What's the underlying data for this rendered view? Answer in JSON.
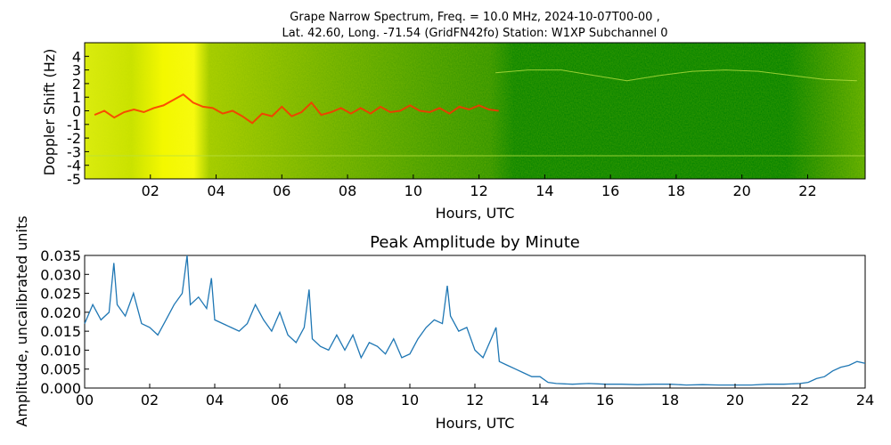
{
  "header": {
    "title_line1": "Grape Narrow Spectrum, Freq. = 10.0 MHz, 2024-10-07T00-00 ,",
    "title_line2": "Lat.  42.60, Long. -71.54 (GridFN42fo) Station: W1XP Subchannel 0"
  },
  "colors": {
    "spectrogram_background": "#008000",
    "spectrogram_noise": "#c8e000",
    "spectrogram_strong": "#ffff00",
    "carrier_trace": "#ff3000",
    "amplitude_line": "#1f77b4"
  },
  "chart_data": [
    {
      "type": "heatmap",
      "title": "",
      "xlabel": "Hours, UTC",
      "ylabel": "Doppler Shift (Hz)",
      "x_ticks": [
        "02",
        "04",
        "06",
        "08",
        "10",
        "12",
        "14",
        "16",
        "18",
        "20",
        "22"
      ],
      "x_tick_values": [
        2,
        4,
        6,
        8,
        10,
        12,
        14,
        16,
        18,
        20,
        22
      ],
      "y_ticks": [
        "4",
        "3",
        "2",
        "1",
        "0",
        "-1",
        "-2",
        "-3",
        "-4",
        "-5"
      ],
      "y_tick_values": [
        4,
        3,
        2,
        1,
        0,
        -1,
        -2,
        -3,
        -4,
        -5
      ],
      "xlim": [
        0,
        23.75
      ],
      "ylim": [
        -5,
        5
      ],
      "colormap_description": "green background, yellow where noise is strong (roughly 00-13 UTC and 22-24 UTC), red carrier trace near 0 Hz",
      "carrier_trace": {
        "x": [
          0.3,
          0.6,
          0.9,
          1.2,
          1.5,
          1.8,
          2.1,
          2.4,
          2.7,
          3.0,
          3.3,
          3.6,
          3.9,
          4.2,
          4.5,
          4.8,
          5.1,
          5.4,
          5.7,
          6.0,
          6.3,
          6.6,
          6.9,
          7.2,
          7.5,
          7.8,
          8.1,
          8.4,
          8.7,
          9.0,
          9.3,
          9.6,
          9.9,
          10.2,
          10.5,
          10.8,
          11.1,
          11.4,
          11.7,
          12.0,
          12.3,
          12.6
        ],
        "y": [
          -0.3,
          0.0,
          -0.5,
          -0.1,
          0.1,
          -0.1,
          0.2,
          0.4,
          0.8,
          1.2,
          0.6,
          0.3,
          0.2,
          -0.2,
          0.0,
          -0.4,
          -0.9,
          -0.2,
          -0.4,
          0.3,
          -0.4,
          -0.1,
          0.6,
          -0.3,
          -0.1,
          0.2,
          -0.2,
          0.2,
          -0.2,
          0.3,
          -0.1,
          0.0,
          0.4,
          0.0,
          -0.1,
          0.2,
          -0.2,
          0.3,
          0.1,
          0.4,
          0.1,
          0.0
        ]
      },
      "faint_traces": [
        {
          "x": [
            12.5,
            13.5,
            14.5,
            15.5,
            16.5,
            17.5,
            18.5,
            19.5,
            20.5,
            21.5,
            22.5,
            23.5
          ],
          "y": [
            2.8,
            3.0,
            3.0,
            2.6,
            2.2,
            2.6,
            2.9,
            3.0,
            2.9,
            2.6,
            2.3,
            2.2
          ]
        },
        {
          "x": [
            0.0,
            23.75
          ],
          "y": [
            -3.3,
            -3.3
          ]
        }
      ]
    },
    {
      "type": "line",
      "title": "Peak Amplitude by Minute",
      "xlabel": "Hours, UTC",
      "ylabel": "Amplitude, uncalibrated units",
      "x_ticks": [
        "00",
        "02",
        "04",
        "06",
        "08",
        "10",
        "12",
        "14",
        "16",
        "18",
        "20",
        "22",
        "24"
      ],
      "x_tick_values": [
        0,
        2,
        4,
        6,
        8,
        10,
        12,
        14,
        16,
        18,
        20,
        22,
        24
      ],
      "y_ticks": [
        "0.000",
        "0.005",
        "0.010",
        "0.015",
        "0.020",
        "0.025",
        "0.030",
        "0.035"
      ],
      "y_tick_values": [
        0,
        0.005,
        0.01,
        0.015,
        0.02,
        0.025,
        0.03,
        0.035
      ],
      "xlim": [
        0,
        24
      ],
      "ylim": [
        0,
        0.035
      ],
      "grid": false,
      "series": [
        {
          "x": [
            0.0,
            0.25,
            0.5,
            0.75,
            0.9,
            1.0,
            1.25,
            1.5,
            1.75,
            2.0,
            2.25,
            2.5,
            2.75,
            3.0,
            3.15,
            3.25,
            3.5,
            3.75,
            3.9,
            4.0,
            4.25,
            4.5,
            4.75,
            5.0,
            5.25,
            5.5,
            5.75,
            6.0,
            6.25,
            6.5,
            6.75,
            6.9,
            7.0,
            7.25,
            7.5,
            7.75,
            8.0,
            8.25,
            8.5,
            8.75,
            9.0,
            9.25,
            9.5,
            9.75,
            10.0,
            10.25,
            10.5,
            10.75,
            11.0,
            11.15,
            11.25,
            11.5,
            11.75,
            12.0,
            12.25,
            12.5,
            12.65,
            12.75,
            13.0,
            13.25,
            13.5,
            13.75,
            14.0,
            14.25,
            14.5,
            15.0,
            15.5,
            16.0,
            16.5,
            17.0,
            17.5,
            18.0,
            18.5,
            19.0,
            19.5,
            20.0,
            20.5,
            21.0,
            21.5,
            22.0,
            22.25,
            22.5,
            22.75,
            23.0,
            23.25,
            23.5,
            23.75,
            24.0
          ],
          "y": [
            0.017,
            0.022,
            0.018,
            0.02,
            0.033,
            0.022,
            0.019,
            0.025,
            0.017,
            0.016,
            0.014,
            0.018,
            0.022,
            0.025,
            0.035,
            0.022,
            0.024,
            0.021,
            0.029,
            0.018,
            0.017,
            0.016,
            0.015,
            0.017,
            0.022,
            0.018,
            0.015,
            0.02,
            0.014,
            0.012,
            0.016,
            0.026,
            0.013,
            0.011,
            0.01,
            0.014,
            0.01,
            0.014,
            0.008,
            0.012,
            0.011,
            0.009,
            0.013,
            0.008,
            0.009,
            0.013,
            0.016,
            0.018,
            0.017,
            0.027,
            0.019,
            0.015,
            0.016,
            0.01,
            0.008,
            0.013,
            0.016,
            0.007,
            0.006,
            0.005,
            0.004,
            0.003,
            0.003,
            0.0015,
            0.0012,
            0.001,
            0.0012,
            0.001,
            0.001,
            0.0009,
            0.001,
            0.001,
            0.0008,
            0.0009,
            0.0008,
            0.0008,
            0.0008,
            0.001,
            0.001,
            0.0012,
            0.0015,
            0.0025,
            0.003,
            0.0045,
            0.0055,
            0.006,
            0.007,
            0.0065
          ]
        }
      ]
    }
  ]
}
